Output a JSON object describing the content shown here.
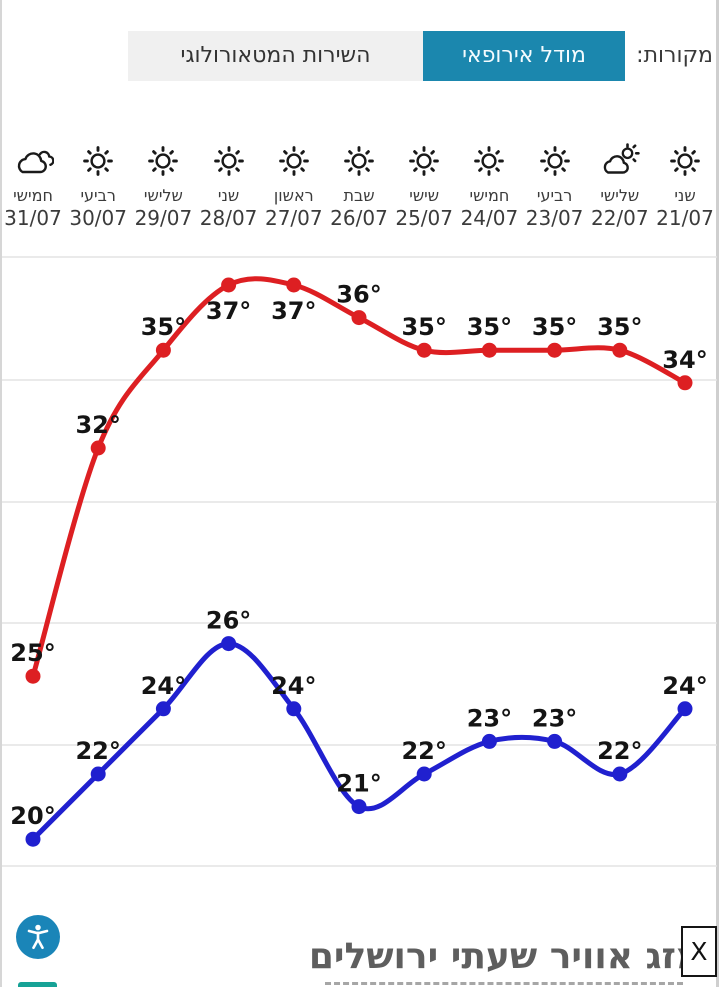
{
  "header": {
    "sources_label": "מקורות:",
    "tabs": [
      {
        "id": "european-model",
        "label": "מודל אירופאי",
        "active": true
      },
      {
        "id": "meteorological-service",
        "label": "השירות המטאורולוגי",
        "active": false
      }
    ]
  },
  "chart_data": {
    "type": "line",
    "direction": "rtl",
    "unit": "°",
    "grid": true,
    "days": [
      {
        "date": "21/07",
        "weekday": "שני",
        "icon": "sunny",
        "max": 34,
        "min": 24
      },
      {
        "date": "22/07",
        "weekday": "שלישי",
        "icon": "partly-cloudy",
        "max": 35,
        "min": 22
      },
      {
        "date": "23/07",
        "weekday": "רביעי",
        "icon": "sunny",
        "max": 35,
        "min": 23
      },
      {
        "date": "24/07",
        "weekday": "חמישי",
        "icon": "sunny",
        "max": 35,
        "min": 23
      },
      {
        "date": "25/07",
        "weekday": "שישי",
        "icon": "sunny",
        "max": 35,
        "min": 22
      },
      {
        "date": "26/07",
        "weekday": "שבת",
        "icon": "sunny",
        "max": 36,
        "min": 21
      },
      {
        "date": "27/07",
        "weekday": "ראשון",
        "icon": "sunny",
        "max": 37,
        "min": 24,
        "max_label_pos": "below"
      },
      {
        "date": "28/07",
        "weekday": "שני",
        "icon": "sunny",
        "max": 37,
        "min": 26,
        "max_label_pos": "below"
      },
      {
        "date": "29/07",
        "weekday": "שלישי",
        "icon": "sunny",
        "max": 35,
        "min": 24
      },
      {
        "date": "30/07",
        "weekday": "רביעי",
        "icon": "sunny",
        "max": 32,
        "min": 22
      },
      {
        "date": "31/07",
        "weekday": "חמישי",
        "icon": "cloudy",
        "max": 25,
        "min": 20
      }
    ],
    "series": [
      {
        "name": "max-temperature",
        "color": "#dd1f22",
        "values": [
          34,
          35,
          35,
          35,
          35,
          36,
          37,
          37,
          35,
          32,
          25
        ]
      },
      {
        "name": "min-temperature",
        "color": "#2020cf",
        "values": [
          24,
          22,
          23,
          23,
          22,
          21,
          24,
          26,
          24,
          22,
          20
        ]
      }
    ]
  },
  "footer": {
    "title": "מזג אוויר שעתי ירושלים",
    "close_label": "X",
    "accessibility_icon": "accessibility-person-icon"
  },
  "colors": {
    "accent_teal": "#1b87ae",
    "tab_inactive_bg": "#f0f0f0",
    "max_line": "#dd1f22",
    "min_line": "#2020cf",
    "gridline": "#e4e4e4",
    "accessibility_blue": "#1a85b8",
    "bottom_sliver_teal": "#16a296"
  }
}
